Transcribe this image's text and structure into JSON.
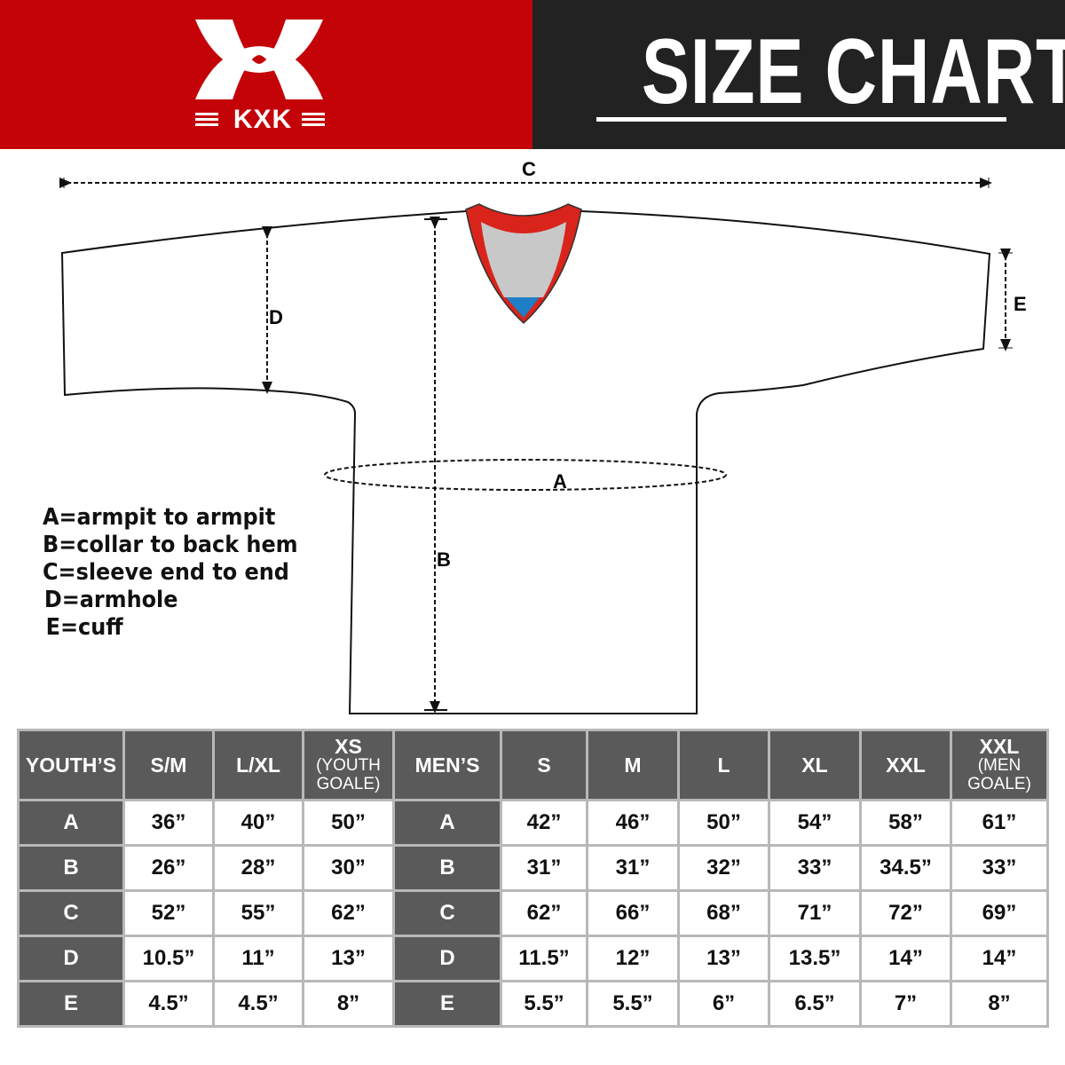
{
  "header": {
    "logo_text": "KXK",
    "title": "SIZE CHART",
    "brand_color": "#c40308",
    "title_bg": "#222222"
  },
  "diagram": {
    "labels": {
      "a": "A",
      "b": "B",
      "c": "C",
      "d": "D",
      "e": "E"
    }
  },
  "legend": [
    "A=armpit to armpit",
    "B=collar to back hem",
    "C=sleeve end to end",
    "D=armhole",
    "E=cuff"
  ],
  "table": {
    "youth": {
      "label": "YOUTH’S",
      "sizes": [
        {
          "main": "S/M",
          "sub": ""
        },
        {
          "main": "L/XL",
          "sub": ""
        },
        {
          "main": "XS",
          "sub": "(YOUTH GOALE)"
        }
      ]
    },
    "men": {
      "label": "MEN’S",
      "sizes": [
        {
          "main": "S",
          "sub": ""
        },
        {
          "main": "M",
          "sub": ""
        },
        {
          "main": "L",
          "sub": ""
        },
        {
          "main": "XL",
          "sub": ""
        },
        {
          "main": "XXL",
          "sub": ""
        },
        {
          "main": "XXL",
          "sub": "(MEN GOALE)"
        }
      ]
    },
    "rows": [
      {
        "key": "A",
        "youth": [
          "36”",
          "40”",
          "50”"
        ],
        "men": [
          "42”",
          "46”",
          "50”",
          "54”",
          "58”",
          "61”"
        ]
      },
      {
        "key": "B",
        "youth": [
          "26”",
          "28”",
          "30”"
        ],
        "men": [
          "31”",
          "31”",
          "32”",
          "33”",
          "34.5”",
          "33”"
        ]
      },
      {
        "key": "C",
        "youth": [
          "52”",
          "55”",
          "62”"
        ],
        "men": [
          "62”",
          "66”",
          "68”",
          "71”",
          "72”",
          "69”"
        ]
      },
      {
        "key": "D",
        "youth": [
          "10.5”",
          "11”",
          "13”"
        ],
        "men": [
          "11.5”",
          "12”",
          "13”",
          "13.5”",
          "14”",
          "14”"
        ]
      },
      {
        "key": "E",
        "youth": [
          "4.5”",
          "4.5”",
          "8”"
        ],
        "men": [
          "5.5”",
          "5.5”",
          "6”",
          "6.5”",
          "7”",
          "8”"
        ]
      }
    ]
  }
}
